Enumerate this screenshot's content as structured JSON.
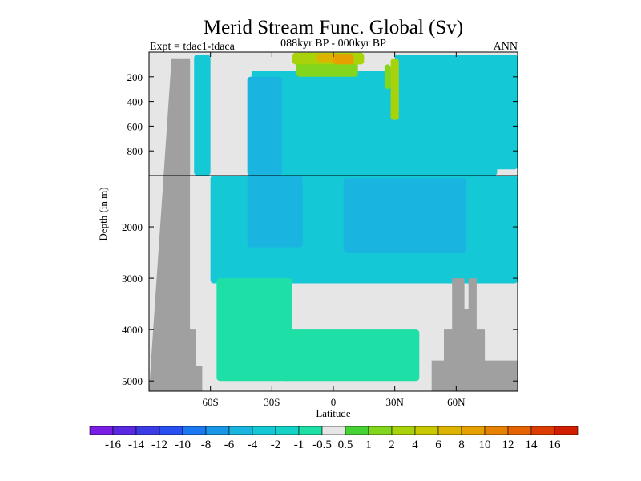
{
  "chart_data": {
    "type": "heatmap",
    "title": "Merid Stream Func. Global (Sv)",
    "subtitle_left": "Expt = tdac1-tdaca",
    "subtitle_center": "088kyr BP - 000kyr BP",
    "subtitle_right": "ANN",
    "xlabel": "Latitude",
    "ylabel": "Depth (in m)",
    "xlim": [
      -90,
      90
    ],
    "x_ticks": [
      {
        "value": -60,
        "label": "60S"
      },
      {
        "value": -30,
        "label": "30S"
      },
      {
        "value": 0,
        "label": "0"
      },
      {
        "value": 30,
        "label": "30N"
      },
      {
        "value": 60,
        "label": "60N"
      }
    ],
    "y_ticks_upper": [
      {
        "value": 200,
        "label": "200"
      },
      {
        "value": 400,
        "label": "400"
      },
      {
        "value": 600,
        "label": "600"
      },
      {
        "value": 800,
        "label": "800"
      }
    ],
    "y_ticks_lower": [
      {
        "value": 2000,
        "label": "2000"
      },
      {
        "value": 3000,
        "label": "3000"
      },
      {
        "value": 4000,
        "label": "4000"
      },
      {
        "value": 5000,
        "label": "5000"
      }
    ],
    "ylim_upper": [
      0,
      1000
    ],
    "ylim_lower": [
      1000,
      5200
    ],
    "regions": [
      {
        "lon0": -72,
        "lon1": -70,
        "d0": 50,
        "d1": 1000,
        "level": -3
      },
      {
        "lon0": -68,
        "lon1": -60,
        "d0": 20,
        "d1": 1000,
        "level": -3
      },
      {
        "lon0": -60,
        "lon1": 90,
        "d0": 1000,
        "d1": 3100,
        "level": -3
      },
      {
        "lon0": -57,
        "lon1": -20,
        "d0": 3000,
        "d1": 5000,
        "level": -1
      },
      {
        "lon0": -25,
        "lon1": 42,
        "d0": 4000,
        "d1": 5000,
        "level": -1
      },
      {
        "lon0": -42,
        "lon1": -15,
        "d0": 1000,
        "d1": 2400,
        "level": -4
      },
      {
        "lon0": 5,
        "lon1": 65,
        "d0": 1050,
        "d1": 2500,
        "level": -4
      },
      {
        "lon0": -40,
        "lon1": 80,
        "d0": 150,
        "d1": 1000,
        "level": -3
      },
      {
        "lon0": -42,
        "lon1": -25,
        "d0": 200,
        "d1": 1000,
        "level": -4
      },
      {
        "lon0": 30,
        "lon1": 90,
        "d0": 20,
        "d1": 950,
        "level": -3
      },
      {
        "lon0": -18,
        "lon1": 12,
        "d0": 20,
        "d1": 200,
        "level": 2
      },
      {
        "lon0": -20,
        "lon1": 15,
        "d0": 5,
        "d1": 100,
        "level": 3
      },
      {
        "lon0": -8,
        "lon1": 2,
        "d0": 10,
        "d1": 80,
        "level": 5
      },
      {
        "lon0": 0,
        "lon1": 10,
        "d0": 15,
        "d1": 100,
        "level": 6
      },
      {
        "lon0": 28,
        "lon1": 32,
        "d0": 50,
        "d1": 550,
        "level": 3
      },
      {
        "lon0": 25,
        "lon1": 28,
        "d0": 100,
        "d1": 300,
        "level": 2
      }
    ],
    "topography": [
      [
        -90,
        5200
      ],
      [
        -79,
        50
      ],
      [
        -70,
        50
      ],
      [
        -70,
        4000
      ],
      [
        -67,
        4000
      ],
      [
        -67,
        4700
      ],
      [
        -64,
        4700
      ],
      [
        -64,
        5200
      ],
      [
        48,
        5200
      ],
      [
        48,
        4600
      ],
      [
        54,
        4600
      ],
      [
        54,
        4000
      ],
      [
        58,
        4000
      ],
      [
        58,
        3000
      ],
      [
        64,
        3000
      ],
      [
        64,
        3600
      ],
      [
        66,
        3600
      ],
      [
        66,
        3000
      ],
      [
        70,
        3000
      ],
      [
        70,
        4000
      ],
      [
        74,
        4000
      ],
      [
        74,
        4600
      ],
      [
        90,
        4600
      ],
      [
        90,
        5200
      ]
    ],
    "colorbar": {
      "levels": [
        -16,
        -14,
        -12,
        -10,
        -8,
        -6,
        -4,
        -2,
        -1,
        -0.5,
        0.5,
        1,
        2,
        4,
        6,
        8,
        10,
        12,
        14,
        16
      ],
      "labels": [
        "-16",
        "-14",
        "-12",
        "-10",
        "-8",
        "-6",
        "-4",
        "-2",
        "-1",
        "-0.5",
        "0.5",
        "1",
        "2",
        "4",
        "6",
        "8",
        "10",
        "12",
        "14",
        "16"
      ],
      "colors": [
        "#7a1ee6",
        "#5a28e0",
        "#3c3ce6",
        "#2850f0",
        "#1a78f0",
        "#1a96e6",
        "#1ab4e0",
        "#14c8d6",
        "#14d2c6",
        "#1ee0a6",
        "#e6e6e6",
        "#46d232",
        "#82d61e",
        "#a8d20a",
        "#c8c800",
        "#dcb400",
        "#e6a000",
        "#e68200",
        "#e66400",
        "#dc3c00",
        "#d21e00"
      ]
    }
  }
}
